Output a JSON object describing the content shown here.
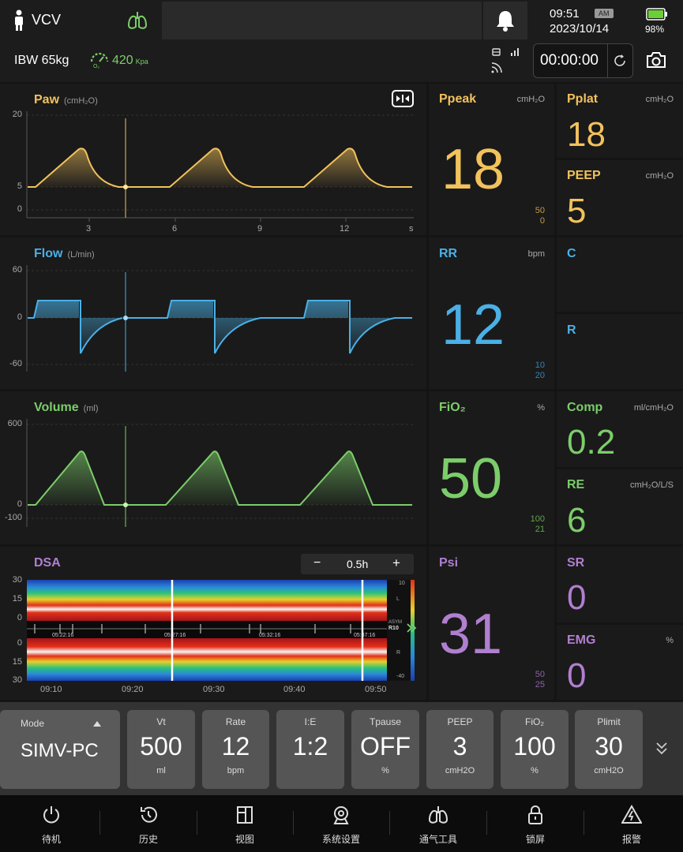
{
  "header": {
    "mode": "VCV",
    "time": "09:51",
    "ampm": "AM",
    "date": "2023/10/14",
    "battery": "98%",
    "ibw": "IBW 65kg",
    "o2_value": "420",
    "o2_unit": "Kpa",
    "o2_icon_label": "O₂",
    "timer": "00:00:00"
  },
  "waveforms": {
    "paw": {
      "title": "Paw",
      "unit": "(cmH₂O)",
      "y_labels": [
        "20",
        "5",
        "0"
      ],
      "x_labels": [
        "3",
        "6",
        "9",
        "12",
        "s"
      ]
    },
    "flow": {
      "title": "Flow",
      "unit": "(L/min)",
      "y_labels": [
        "60",
        "0",
        "-60"
      ]
    },
    "volume": {
      "title": "Volume",
      "unit": "(ml)",
      "y_labels": [
        "600",
        "0",
        "-100"
      ]
    },
    "dsa": {
      "title": "DSA",
      "window": "0.5h",
      "minus": "−",
      "plus": "+",
      "y_labels_top": [
        "30",
        "15",
        "0"
      ],
      "y_labels_bottom": [
        "0",
        "15",
        "30"
      ],
      "scale_labels": [
        "10",
        "L",
        "ASYM",
        "R10",
        "R",
        "-40"
      ],
      "marker_times": [
        "05:22:16",
        "05:27:16",
        "05:32:16",
        "05:37:16"
      ],
      "x_labels": [
        "09:10",
        "09:20",
        "09:30",
        "09:40",
        "09:50"
      ]
    }
  },
  "params": {
    "ppeak": {
      "name": "Ppeak",
      "unit": "cmH₂O",
      "value": "18",
      "hi": "50",
      "lo": "0"
    },
    "pplat": {
      "name": "Pplat",
      "unit": "cmH₂O",
      "value": "18"
    },
    "peep": {
      "name": "PEEP",
      "unit": "cmH₂O",
      "value": "5"
    },
    "rr": {
      "name": "RR",
      "unit": "bpm",
      "value": "12",
      "hi": "10",
      "lo": "20"
    },
    "c": {
      "name": "C"
    },
    "r": {
      "name": "R"
    },
    "fio2": {
      "name": "FiO₂",
      "unit": "%",
      "value": "50",
      "hi": "100",
      "lo": "21"
    },
    "comp": {
      "name": "Comp",
      "unit": "ml/cmH₂O",
      "value": "0.2"
    },
    "re": {
      "name": "RE",
      "unit": "cmH₂O/L/S",
      "value": "6"
    },
    "psi": {
      "name": "Psi",
      "value": "31",
      "hi": "50",
      "lo": "25"
    },
    "sr": {
      "name": "SR",
      "value": "0"
    },
    "emg": {
      "name": "EMG",
      "unit": "%",
      "value": "0"
    }
  },
  "settings": {
    "mode_label": "Mode",
    "mode_value": "SIMV-PC",
    "items": [
      {
        "label": "Vt",
        "value": "500",
        "unit": "ml"
      },
      {
        "label": "Rate",
        "value": "12",
        "unit": "bpm"
      },
      {
        "label": "I:E",
        "value": "1:2",
        "unit": ""
      },
      {
        "label": "Tpause",
        "value": "OFF",
        "unit": "%"
      },
      {
        "label": "PEEP",
        "value": "3",
        "unit": "cmH2O"
      },
      {
        "label": "FiO₂",
        "value": "100",
        "unit": "%"
      },
      {
        "label": "Plimit",
        "value": "30",
        "unit": "cmH2O"
      }
    ]
  },
  "nav": [
    {
      "label": "待机",
      "icon": "power-icon"
    },
    {
      "label": "历史",
      "icon": "history-icon"
    },
    {
      "label": "视图",
      "icon": "view-icon"
    },
    {
      "label": "系统设置",
      "icon": "settings-icon"
    },
    {
      "label": "通气工具",
      "icon": "lungs-icon"
    },
    {
      "label": "锁屏",
      "icon": "lock-icon"
    },
    {
      "label": "报警",
      "icon": "alarm-icon"
    }
  ],
  "colors": {
    "paw": "#f2c25c",
    "flow": "#4ab0e6",
    "volume": "#7ccd6a",
    "dsa": "#b07fd0",
    "o2": "#7ccd6a"
  }
}
